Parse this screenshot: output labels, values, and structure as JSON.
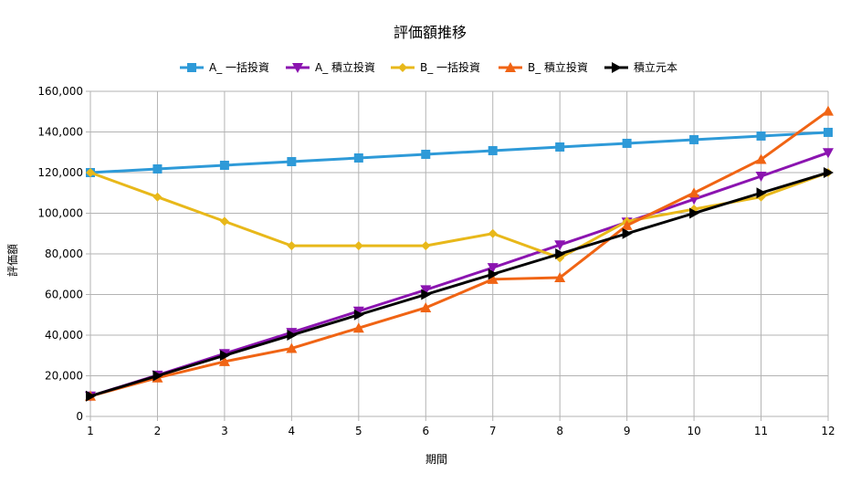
{
  "chart_data": {
    "type": "line",
    "title": "評価額推移",
    "xlabel": "期間",
    "ylabel": "評価額",
    "x": [
      1,
      2,
      3,
      4,
      5,
      6,
      7,
      8,
      9,
      10,
      11,
      12
    ],
    "xlim": [
      1,
      12
    ],
    "ylim": [
      0,
      160000
    ],
    "y_ticks": [
      0,
      20000,
      40000,
      60000,
      80000,
      100000,
      120000,
      140000,
      160000
    ],
    "y_tick_labels": [
      "0",
      "20,000",
      "40,000",
      "60,000",
      "80,000",
      "100,000",
      "120,000",
      "140,000",
      "160,000"
    ],
    "x_tick_labels": [
      "1",
      "2",
      "3",
      "4",
      "5",
      "6",
      "7",
      "8",
      "9",
      "10",
      "11",
      "12"
    ],
    "grid": true,
    "legend_position": "top",
    "series": [
      {
        "name": "A_ 一括投資",
        "color": "#2e9ad8",
        "marker": "square",
        "values": [
          120000,
          121800,
          123600,
          125400,
          127200,
          129000,
          130800,
          132600,
          134400,
          136200,
          138000,
          139800
        ]
      },
      {
        "name": "A_ 積立投資",
        "color": "#8b14b0",
        "marker": "triangle-down",
        "values": [
          10000,
          20300,
          30900,
          41300,
          51800,
          62300,
          73200,
          84400,
          95600,
          106900,
          118200,
          129800
        ]
      },
      {
        "name": "B_ 一括投資",
        "color": "#e8b81a",
        "marker": "diamond",
        "values": [
          120000,
          108000,
          96000,
          84000,
          84000,
          84000,
          90000,
          78000,
          96000,
          102000,
          108000,
          120000
        ]
      },
      {
        "name": "B_ 積立投資",
        "color": "#f06414",
        "marker": "triangle-up",
        "values": [
          10000,
          19000,
          27000,
          33500,
          43500,
          53500,
          67500,
          68300,
          94000,
          110000,
          126500,
          150300
        ]
      },
      {
        "name": "積立元本",
        "color": "#000000",
        "marker": "triangle-right",
        "values": [
          10000,
          20000,
          30000,
          40000,
          50000,
          60000,
          70000,
          80000,
          90000,
          100000,
          110000,
          120000
        ]
      }
    ]
  }
}
